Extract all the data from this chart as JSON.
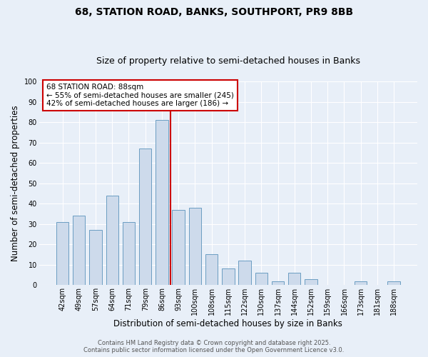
{
  "title": "68, STATION ROAD, BANKS, SOUTHPORT, PR9 8BB",
  "subtitle": "Size of property relative to semi-detached houses in Banks",
  "xlabel": "Distribution of semi-detached houses by size in Banks",
  "ylabel": "Number of semi-detached properties",
  "categories": [
    "42sqm",
    "49sqm",
    "57sqm",
    "64sqm",
    "71sqm",
    "79sqm",
    "86sqm",
    "93sqm",
    "100sqm",
    "108sqm",
    "115sqm",
    "122sqm",
    "130sqm",
    "137sqm",
    "144sqm",
    "152sqm",
    "159sqm",
    "166sqm",
    "173sqm",
    "181sqm",
    "188sqm"
  ],
  "values": [
    31,
    34,
    27,
    44,
    31,
    67,
    81,
    37,
    38,
    15,
    8,
    12,
    6,
    2,
    6,
    3,
    0,
    0,
    2,
    0,
    2
  ],
  "bar_color": "#cddaeb",
  "bar_edge_color": "#6b9dc2",
  "bar_width": 0.75,
  "vline_x": 6.5,
  "vline_color": "#cc0000",
  "annotation_title": "68 STATION ROAD: 88sqm",
  "annotation_line1": "← 55% of semi-detached houses are smaller (245)",
  "annotation_line2": "42% of semi-detached houses are larger (186) →",
  "annotation_box_color": "#ffffff",
  "annotation_box_edge": "#cc0000",
  "ylim": [
    0,
    100
  ],
  "yticks": [
    0,
    10,
    20,
    30,
    40,
    50,
    60,
    70,
    80,
    90,
    100
  ],
  "footer1": "Contains HM Land Registry data © Crown copyright and database right 2025.",
  "footer2": "Contains public sector information licensed under the Open Government Licence v3.0.",
  "background_color": "#e8eff8",
  "plot_background": "#e8eff8",
  "title_fontsize": 10,
  "subtitle_fontsize": 9,
  "axis_label_fontsize": 8.5,
  "tick_fontsize": 7,
  "annotation_fontsize": 7.5,
  "footer_fontsize": 6
}
